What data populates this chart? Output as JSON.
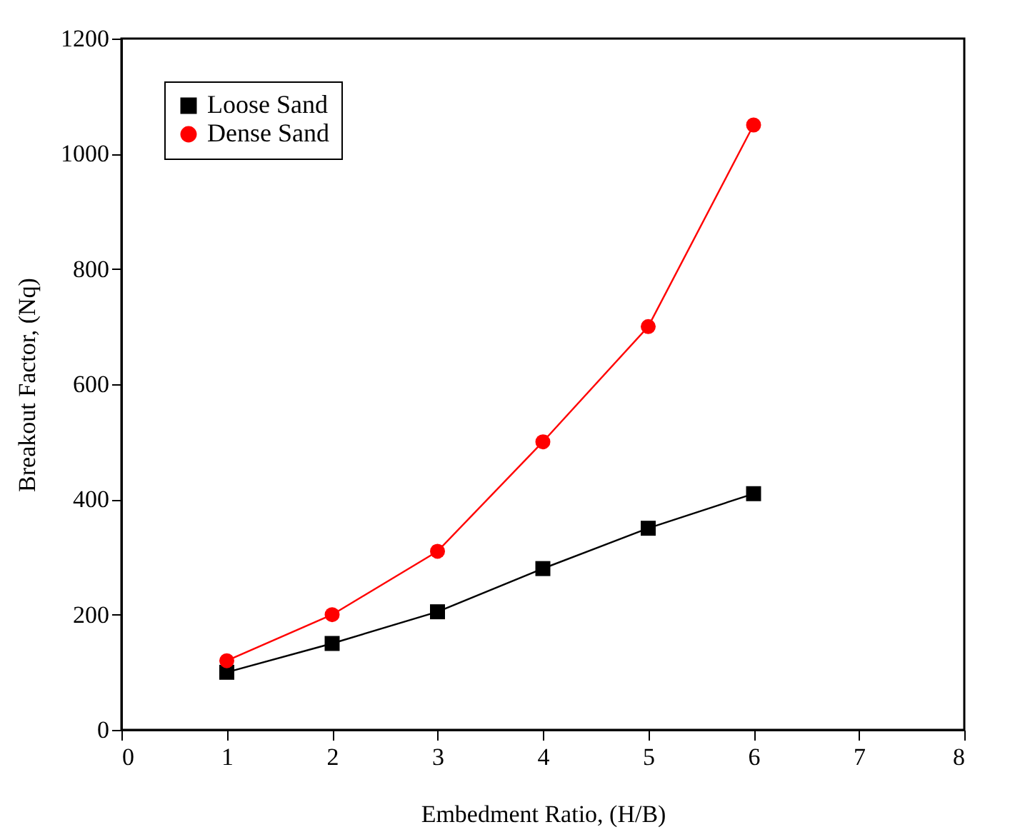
{
  "chart_data": {
    "type": "line",
    "xlabel": "Embedment Ratio, (H/B)",
    "ylabel": "Breakout Factor, (Nq)",
    "x": [
      1,
      2,
      3,
      4,
      5,
      6
    ],
    "series": [
      {
        "name": "Loose Sand",
        "color": "#000000",
        "marker": "square",
        "values": [
          100,
          150,
          205,
          280,
          350,
          410
        ]
      },
      {
        "name": "Dense Sand",
        "color": "#ff0000",
        "marker": "circle",
        "values": [
          120,
          200,
          310,
          500,
          700,
          1050
        ]
      }
    ],
    "xlim": [
      0,
      8
    ],
    "xticks": [
      0,
      1,
      2,
      3,
      4,
      5,
      6,
      7,
      8
    ],
    "ylim": [
      0,
      1200
    ],
    "yticks": [
      0,
      200,
      400,
      600,
      800,
      1000,
      1200
    ],
    "grid": false,
    "legend": "top left"
  }
}
